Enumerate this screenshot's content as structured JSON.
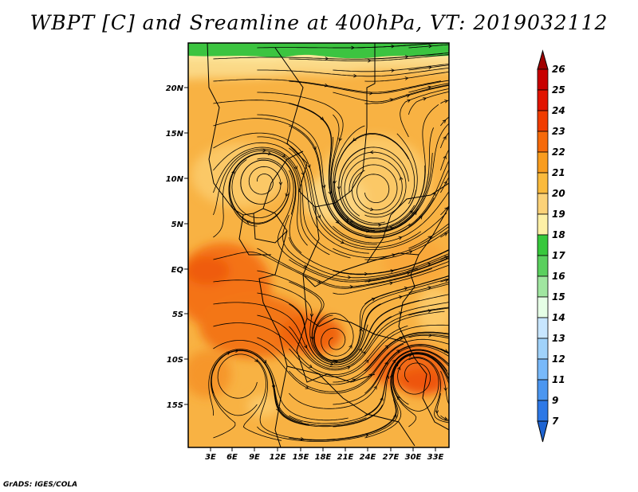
{
  "title": "WBPT [C] and Sreamline at 400hPa, VT: 2019032112",
  "credit": "GrADS: IGES/COLA",
  "map": {
    "lat_labels": [
      "20N",
      "15N",
      "10N",
      "5N",
      "EQ",
      "5S",
      "10S",
      "15S"
    ],
    "lon_labels": [
      "3E",
      "6E",
      "9E",
      "12E",
      "15E",
      "18E",
      "21E",
      "24E",
      "27E",
      "30E",
      "33E"
    ]
  },
  "colorbar": {
    "labels": [
      "26",
      "25",
      "24",
      "23",
      "22",
      "21",
      "20",
      "19",
      "18",
      "17",
      "16",
      "15",
      "14",
      "13",
      "12",
      "11",
      "9",
      "7"
    ],
    "colors": [
      "#c80000",
      "#e11400",
      "#f03c00",
      "#f66a0a",
      "#f89c1e",
      "#faba3c",
      "#fcd278",
      "#fef0a6",
      "#37c83c",
      "#5ad05e",
      "#a0e6a0",
      "#e6ffe6",
      "#c8e6ff",
      "#a0d2fa",
      "#78b9fa",
      "#4b96f0",
      "#2d78e6"
    ],
    "top_arrow_color": "#a00000",
    "bottom_arrow_color": "#1e64d2"
  }
}
